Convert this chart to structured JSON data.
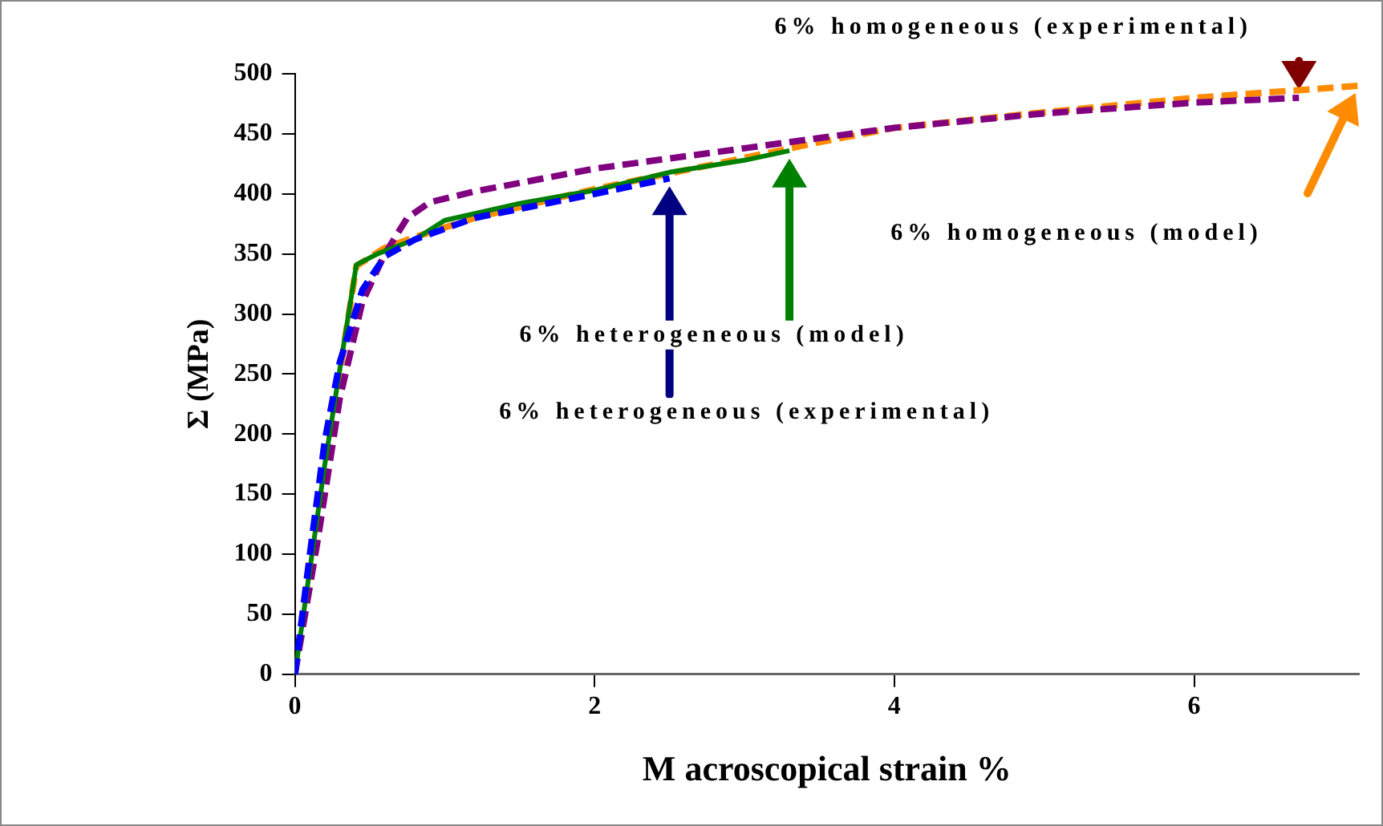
{
  "chart_data": {
    "type": "line",
    "xlabel": "M acroscopical strain %",
    "ylabel": "Σ (MPa)",
    "xlim": [
      0,
      7.1
    ],
    "xticks": [
      0,
      2,
      4,
      6
    ],
    "ylim": [
      0,
      500
    ],
    "yticks": [
      0,
      50,
      100,
      150,
      200,
      250,
      300,
      350,
      400,
      450,
      500
    ],
    "grid": false,
    "legend": false,
    "marker": "none",
    "series": [
      {
        "color": "#ff8c00",
        "line_style": "dashed",
        "x": [
          0,
          0.2,
          0.41,
          0.6,
          0.8,
          1.2,
          2,
          3,
          3.5,
          4,
          5,
          6,
          7.1
        ],
        "values": [
          0,
          170,
          340,
          355,
          364,
          380,
          404,
          430,
          443,
          455,
          468,
          480,
          490
        ]
      },
      {
        "color": "#800080",
        "line_style": "dashed",
        "x": [
          0,
          0.15,
          0.3,
          0.45,
          0.6,
          0.75,
          0.9,
          1.2,
          2,
          3,
          4,
          5,
          6,
          6.7
        ],
        "values": [
          0,
          110,
          230,
          310,
          350,
          380,
          393,
          402,
          421,
          438,
          455,
          467,
          476,
          480
        ]
      },
      {
        "color": "#008000",
        "line_style": "solid",
        "x": [
          0,
          0.2,
          0.41,
          0.55,
          0.8,
          1.0,
          1.5,
          2,
          2.5,
          3,
          3.3
        ],
        "values": [
          0,
          175,
          341,
          350,
          362,
          378,
          392,
          403,
          418,
          428,
          436
        ]
      },
      {
        "color": "#0000ff",
        "line_style": "dashed",
        "x": [
          0,
          0.1,
          0.2,
          0.3,
          0.45,
          0.6,
          0.8,
          1.2,
          2,
          2.5
        ],
        "values": [
          0,
          100,
          195,
          260,
          320,
          348,
          362,
          380,
          400,
          413
        ]
      }
    ],
    "annotations": [
      "6% homogeneous (experimental)",
      "6% homogeneous (model)",
      "6% heterogeneous (model)",
      "6% heterogeneous (experimental)"
    ]
  }
}
